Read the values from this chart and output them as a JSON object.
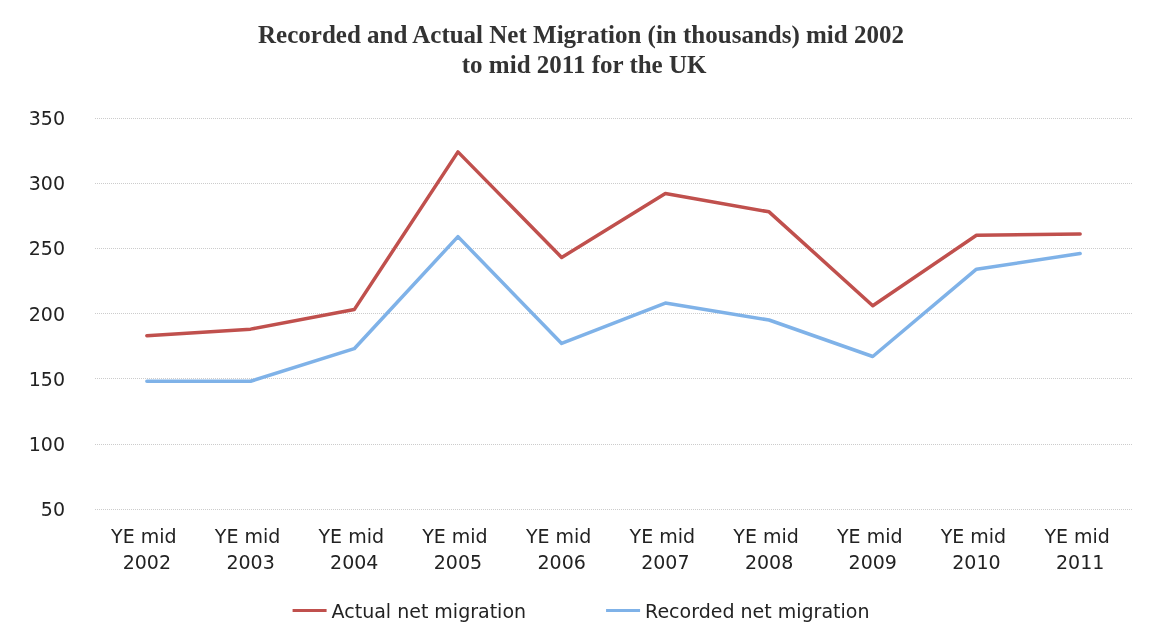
{
  "chart_data": {
    "type": "line",
    "title": "Recorded and Actual Net Migration (in thousands) mid 2002 to mid 2011 for the UK",
    "categories": [
      "YE mid 2002",
      "YE mid 2003",
      "YE mid 2004",
      "YE mid 2005",
      "YE mid 2006",
      "YE mid 2007",
      "YE mid 2008",
      "YE mid 2009",
      "YE mid 2010",
      "YE mid 2011"
    ],
    "series": [
      {
        "name": "Actual net migration",
        "color": "#c0504d",
        "values": [
          183,
          188,
          203,
          324,
          243,
          292,
          278,
          206,
          260,
          261
        ]
      },
      {
        "name": "Recorded net migration",
        "color": "#7fb2e8",
        "values": [
          148,
          148,
          173,
          259,
          177,
          208,
          195,
          167,
          234,
          246
        ]
      }
    ],
    "ylim": [
      50,
      350
    ],
    "yticks": [
      50,
      100,
      150,
      200,
      250,
      300,
      350
    ],
    "grid": "y",
    "legend": "bottom",
    "marker": "none",
    "line_style": "solid"
  }
}
